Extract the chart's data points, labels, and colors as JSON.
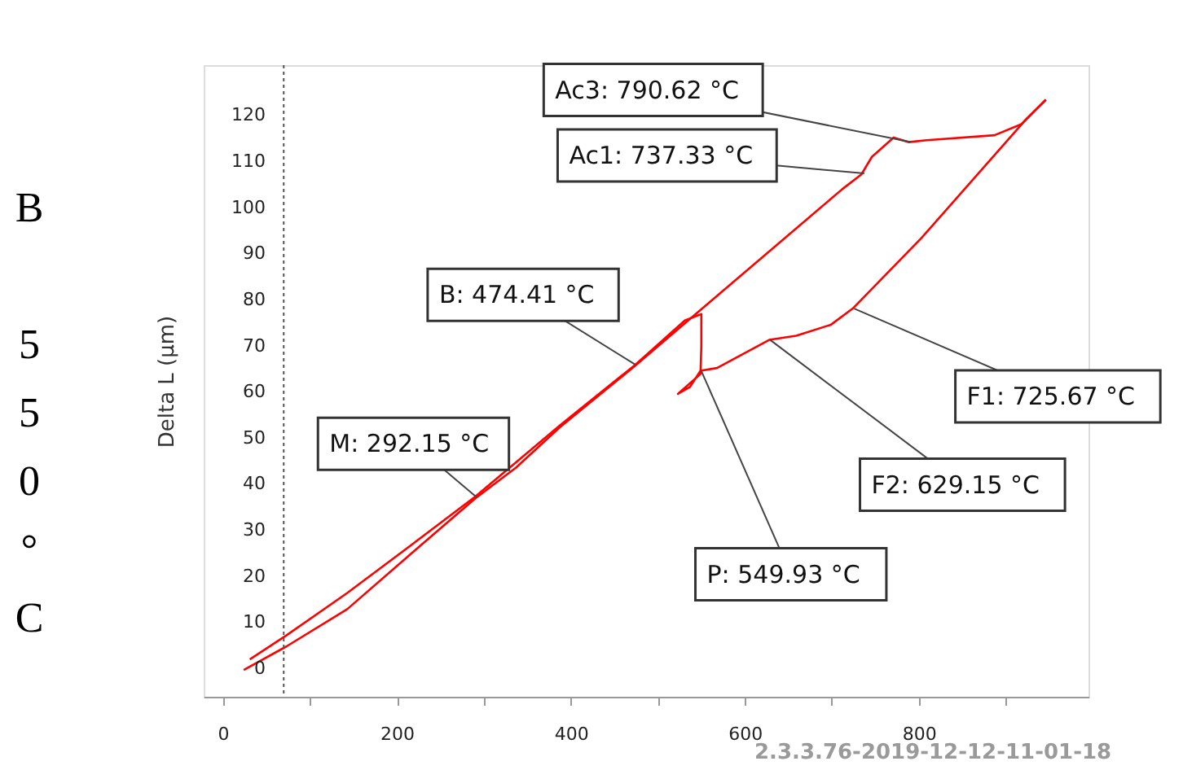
{
  "chart_data": {
    "type": "line",
    "ylabel": "Delta L (µm)",
    "xlim": [
      -22,
      995
    ],
    "ylim": [
      -6,
      131
    ],
    "xticks": [
      0,
      {
        "value": 100,
        "label": null
      },
      200,
      {
        "value": 300,
        "label": null
      },
      400,
      {
        "value": 500,
        "label": null
      },
      600,
      {
        "value": 700,
        "label": null
      },
      800,
      {
        "value": 900,
        "label": null
      }
    ],
    "yticks": [
      0,
      10,
      20,
      30,
      40,
      50,
      60,
      70,
      80,
      90,
      100,
      110,
      120
    ],
    "grid": false,
    "legend": false,
    "line_style": "solid",
    "series": [
      {
        "color": "#ff0000",
        "x": [
          24,
          73,
          143,
          218,
          290,
          337,
          387,
          474,
          531,
          712,
          734,
          746,
          771,
          788,
          809,
          887,
          918,
          946
        ],
        "values": [
          -0.2,
          4.9,
          13.0,
          25.3,
          37.0,
          43.7,
          52.4,
          65.8,
          75.0,
          104.1,
          107.3,
          111.1,
          115.3,
          114.3,
          114.7,
          115.8,
          118.2,
          123.5
        ]
      },
      {
        "color": "#ff0000",
        "x": [
          946,
          924,
          803,
          724,
          699,
          659,
          628,
          568,
          549,
          537,
          523,
          540,
          549,
          550,
          550,
          531,
          474,
          387,
          290,
          218,
          143,
          73,
          31
        ],
        "values": [
          123.5,
          119.4,
          93.5,
          78.2,
          74.7,
          72.3,
          71.4,
          65.3,
          64.7,
          61.2,
          59.7,
          62.5,
          64.0,
          70.0,
          77.0,
          75.6,
          66.0,
          52.8,
          37.4,
          27.1,
          16.5,
          7.3,
          2.1
        ]
      }
    ],
    "ref_lines": [
      {
        "axis": "x",
        "value": 70,
        "label": null,
        "color": "#555555",
        "line_style": "dotted"
      }
    ],
    "annotations": [
      {
        "text": "Ac3: 790.62 °C",
        "x": 790.62,
        "y": 114.3
      },
      {
        "text": "Ac1: 737.33 °C",
        "x": 737.33,
        "y": 107.5
      },
      {
        "text": "B: 474.41 °C",
        "x": 474.41,
        "y": 66.0
      },
      {
        "text": "M: 292.15 °C",
        "x": 292.15,
        "y": 37.2
      },
      {
        "text": "P: 549.93 °C",
        "x": 549.93,
        "y": 64.7
      },
      {
        "text": "F2: 629.15 °C",
        "x": 629.15,
        "y": 71.4
      },
      {
        "text": "F1: 725.67 °C",
        "x": 725.67,
        "y": 78.2
      },
      "B 550°C",
      "2.3.3.76-2019-12-12-11-01-18"
    ]
  }
}
